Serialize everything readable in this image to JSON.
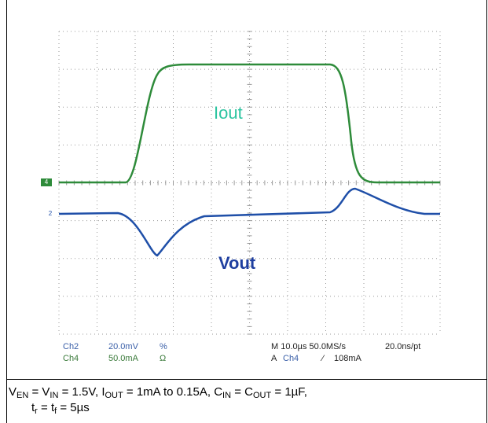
{
  "markers": {
    "ch4": "4",
    "ch2": "2"
  },
  "labels": {
    "iout": "Iout",
    "vout": "Vout"
  },
  "status": {
    "ch2": {
      "name": "Ch2",
      "scale": "20.0mV",
      "coupling": "%"
    },
    "ch4": {
      "name": "Ch4",
      "scale": "50.0mA",
      "coupling": "Ω"
    },
    "timebase": "M 10.0µs 50.0MS/s",
    "resolution": "20.0ns/pt",
    "trigger": {
      "mode": "A",
      "source": "Ch4",
      "slope": "⁄",
      "level": "108mA"
    }
  },
  "caption": {
    "line1": [
      "V",
      "EN",
      " = V",
      "IN",
      " = 1.5V, I",
      "OUT",
      " = 1mA to 0.15A, C",
      "IN",
      " = C",
      "OUT",
      " = 1µF,"
    ],
    "line2": [
      "t",
      "r",
      " = t",
      "f",
      " = 5µs"
    ]
  }
}
